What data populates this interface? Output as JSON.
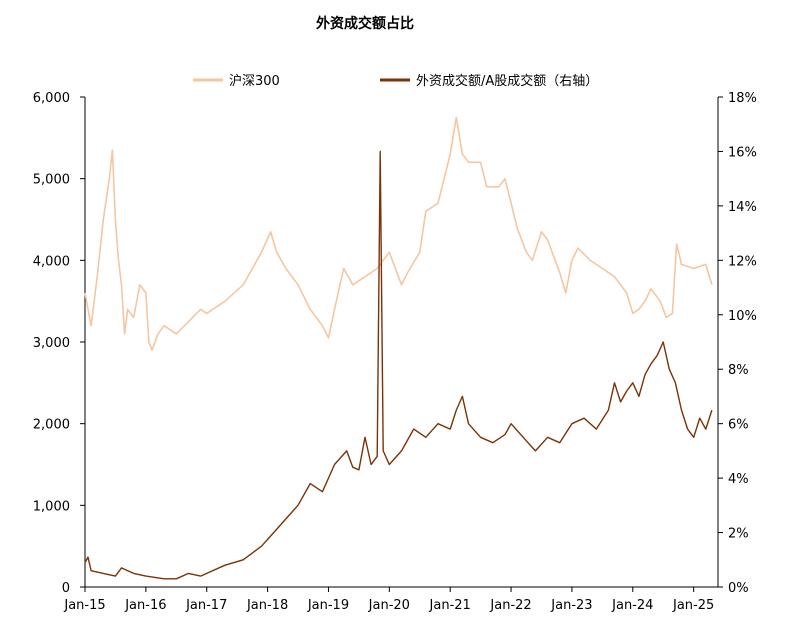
{
  "chart_data": {
    "type": "line",
    "title": "外资成交额占比",
    "x_tick_labels": [
      "Jan-15",
      "Jan-16",
      "Jan-17",
      "Jan-18",
      "Jan-19",
      "Jan-20",
      "Jan-21",
      "Jan-22",
      "Jan-23",
      "Jan-24",
      "Jan-25"
    ],
    "x_range": [
      2015.0,
      2025.4
    ],
    "y_left": {
      "range": [
        0,
        6000
      ],
      "ticks": [
        0,
        1000,
        2000,
        3000,
        4000,
        5000,
        6000
      ],
      "tick_labels": [
        "0",
        "1,000",
        "2,000",
        "3,000",
        "4,000",
        "5,000",
        "6,000"
      ]
    },
    "y_right": {
      "range": [
        0,
        18
      ],
      "ticks": [
        0,
        2,
        4,
        6,
        8,
        10,
        12,
        14,
        16,
        18
      ],
      "tick_labels": [
        "0%",
        "2%",
        "4%",
        "6%",
        "8%",
        "10%",
        "12%",
        "14%",
        "16%",
        "18%"
      ]
    },
    "legend_position": "top",
    "series": [
      {
        "name": "沪深300",
        "axis": "left",
        "color": "#F5C6A0",
        "points": [
          [
            2015.0,
            3600
          ],
          [
            2015.1,
            3200
          ],
          [
            2015.2,
            3800
          ],
          [
            2015.3,
            4500
          ],
          [
            2015.4,
            5000
          ],
          [
            2015.45,
            5350
          ],
          [
            2015.5,
            4500
          ],
          [
            2015.55,
            4000
          ],
          [
            2015.6,
            3700
          ],
          [
            2015.65,
            3100
          ],
          [
            2015.7,
            3400
          ],
          [
            2015.8,
            3300
          ],
          [
            2015.9,
            3700
          ],
          [
            2016.0,
            3600
          ],
          [
            2016.05,
            3000
          ],
          [
            2016.1,
            2900
          ],
          [
            2016.2,
            3100
          ],
          [
            2016.3,
            3200
          ],
          [
            2016.5,
            3100
          ],
          [
            2016.7,
            3250
          ],
          [
            2016.9,
            3400
          ],
          [
            2017.0,
            3350
          ],
          [
            2017.3,
            3500
          ],
          [
            2017.6,
            3700
          ],
          [
            2017.9,
            4100
          ],
          [
            2018.05,
            4350
          ],
          [
            2018.15,
            4100
          ],
          [
            2018.3,
            3900
          ],
          [
            2018.5,
            3700
          ],
          [
            2018.7,
            3400
          ],
          [
            2018.9,
            3200
          ],
          [
            2019.0,
            3050
          ],
          [
            2019.1,
            3400
          ],
          [
            2019.25,
            3900
          ],
          [
            2019.4,
            3700
          ],
          [
            2019.6,
            3800
          ],
          [
            2019.8,
            3900
          ],
          [
            2020.0,
            4100
          ],
          [
            2020.1,
            3900
          ],
          [
            2020.2,
            3700
          ],
          [
            2020.3,
            3850
          ],
          [
            2020.5,
            4100
          ],
          [
            2020.6,
            4600
          ],
          [
            2020.8,
            4700
          ],
          [
            2020.9,
            5000
          ],
          [
            2021.0,
            5300
          ],
          [
            2021.1,
            5750
          ],
          [
            2021.2,
            5300
          ],
          [
            2021.3,
            5200
          ],
          [
            2021.5,
            5200
          ],
          [
            2021.6,
            4900
          ],
          [
            2021.8,
            4900
          ],
          [
            2021.9,
            5000
          ],
          [
            2022.0,
            4700
          ],
          [
            2022.1,
            4400
          ],
          [
            2022.25,
            4100
          ],
          [
            2022.35,
            4000
          ],
          [
            2022.5,
            4350
          ],
          [
            2022.6,
            4250
          ],
          [
            2022.8,
            3850
          ],
          [
            2022.9,
            3600
          ],
          [
            2023.0,
            4000
          ],
          [
            2023.1,
            4150
          ],
          [
            2023.3,
            4000
          ],
          [
            2023.5,
            3900
          ],
          [
            2023.7,
            3800
          ],
          [
            2023.9,
            3600
          ],
          [
            2024.0,
            3350
          ],
          [
            2024.1,
            3400
          ],
          [
            2024.2,
            3500
          ],
          [
            2024.3,
            3650
          ],
          [
            2024.45,
            3500
          ],
          [
            2024.55,
            3300
          ],
          [
            2024.65,
            3350
          ],
          [
            2024.72,
            4200
          ],
          [
            2024.8,
            3950
          ],
          [
            2025.0,
            3900
          ],
          [
            2025.2,
            3950
          ],
          [
            2025.3,
            3700
          ]
        ]
      },
      {
        "name": "外资成交额/A股成交额（右轴）",
        "axis": "right",
        "color": "#7B3306",
        "points": [
          [
            2015.0,
            0.9
          ],
          [
            2015.05,
            1.1
          ],
          [
            2015.1,
            0.6
          ],
          [
            2015.3,
            0.5
          ],
          [
            2015.5,
            0.4
          ],
          [
            2015.6,
            0.7
          ],
          [
            2015.8,
            0.5
          ],
          [
            2016.0,
            0.4
          ],
          [
            2016.3,
            0.3
          ],
          [
            2016.5,
            0.3
          ],
          [
            2016.7,
            0.5
          ],
          [
            2016.9,
            0.4
          ],
          [
            2017.0,
            0.5
          ],
          [
            2017.3,
            0.8
          ],
          [
            2017.6,
            1.0
          ],
          [
            2017.9,
            1.5
          ],
          [
            2018.1,
            2.0
          ],
          [
            2018.3,
            2.5
          ],
          [
            2018.5,
            3.0
          ],
          [
            2018.7,
            3.8
          ],
          [
            2018.9,
            3.5
          ],
          [
            2019.0,
            4.0
          ],
          [
            2019.1,
            4.5
          ],
          [
            2019.3,
            5.0
          ],
          [
            2019.4,
            4.4
          ],
          [
            2019.5,
            4.3
          ],
          [
            2019.6,
            5.5
          ],
          [
            2019.7,
            4.5
          ],
          [
            2019.8,
            4.8
          ],
          [
            2019.85,
            16.0
          ],
          [
            2019.9,
            5.0
          ],
          [
            2020.0,
            4.5
          ],
          [
            2020.2,
            5.0
          ],
          [
            2020.4,
            5.8
          ],
          [
            2020.6,
            5.5
          ],
          [
            2020.8,
            6.0
          ],
          [
            2021.0,
            5.8
          ],
          [
            2021.1,
            6.5
          ],
          [
            2021.2,
            7.0
          ],
          [
            2021.3,
            6.0
          ],
          [
            2021.5,
            5.5
          ],
          [
            2021.7,
            5.3
          ],
          [
            2021.9,
            5.6
          ],
          [
            2022.0,
            6.0
          ],
          [
            2022.2,
            5.5
          ],
          [
            2022.4,
            5.0
          ],
          [
            2022.6,
            5.5
          ],
          [
            2022.8,
            5.3
          ],
          [
            2023.0,
            6.0
          ],
          [
            2023.2,
            6.2
          ],
          [
            2023.4,
            5.8
          ],
          [
            2023.6,
            6.5
          ],
          [
            2023.7,
            7.5
          ],
          [
            2023.8,
            6.8
          ],
          [
            2023.9,
            7.2
          ],
          [
            2024.0,
            7.5
          ],
          [
            2024.1,
            7.0
          ],
          [
            2024.2,
            7.8
          ],
          [
            2024.3,
            8.2
          ],
          [
            2024.4,
            8.5
          ],
          [
            2024.5,
            9.0
          ],
          [
            2024.6,
            8.0
          ],
          [
            2024.7,
            7.5
          ],
          [
            2024.8,
            6.5
          ],
          [
            2024.9,
            5.8
          ],
          [
            2025.0,
            5.5
          ],
          [
            2025.1,
            6.2
          ],
          [
            2025.2,
            5.8
          ],
          [
            2025.3,
            6.5
          ]
        ]
      }
    ]
  }
}
